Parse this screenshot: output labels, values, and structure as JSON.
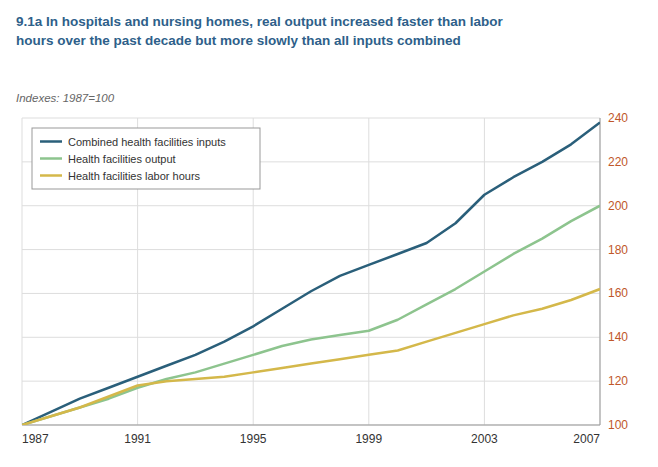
{
  "chart_data": {
    "type": "line",
    "title": "9.1a In hospitals and nursing homes, real output increased faster than labor\nhours over the past decade but more slowly than all inputs combined",
    "subtitle": "Indexes: 1987=100",
    "x": [
      1987,
      1988,
      1989,
      1990,
      1991,
      1992,
      1993,
      1994,
      1995,
      1996,
      1997,
      1998,
      1999,
      2000,
      2001,
      2002,
      2003,
      2004,
      2005,
      2006,
      2007
    ],
    "series": [
      {
        "name": "Combined health facilities inputs",
        "color": "#2a5f7a",
        "values": [
          100,
          106,
          112,
          117,
          122,
          127,
          132,
          138,
          145,
          153,
          161,
          168,
          173,
          178,
          183,
          192,
          205,
          213,
          220,
          228,
          238
        ]
      },
      {
        "name": "Health facilities output",
        "color": "#8dc48e",
        "values": [
          100,
          104,
          108,
          112,
          117,
          121,
          124,
          128,
          132,
          136,
          139,
          141,
          143,
          148,
          155,
          162,
          170,
          178,
          185,
          193,
          200
        ]
      },
      {
        "name": "Health facilities labor hours",
        "color": "#d4b84a",
        "values": [
          100,
          104,
          108,
          113,
          118,
          120,
          121,
          122,
          124,
          126,
          128,
          130,
          132,
          134,
          138,
          142,
          146,
          150,
          153,
          157,
          162
        ]
      }
    ],
    "xlim": [
      1987,
      2007
    ],
    "xticks": [
      1987,
      1991,
      1995,
      1999,
      2003,
      2007
    ],
    "ylim": [
      100,
      240
    ],
    "yticks": [
      100,
      120,
      140,
      160,
      180,
      200,
      220,
      240
    ],
    "grid": true,
    "legend": "upper left"
  }
}
